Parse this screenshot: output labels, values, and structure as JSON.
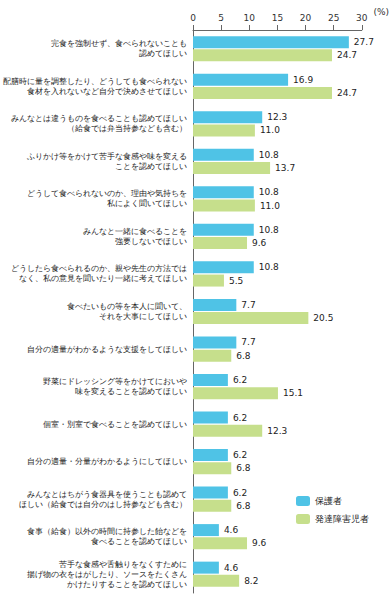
{
  "chart_data": {
    "type": "bar",
    "orientation": "horizontal",
    "xlabel": "(%)",
    "categories": [
      "完食を強制せず、食べられないことも\n認めてほしい",
      "配膳時に量を調整したり、どうしても食べられない\n食材を入れないなど自分で決めさせてほしい",
      "みんなとは違うものを食べることも認めてほしい\n（給食では弁当持参なども含む）",
      "ふりかけ等をかけて苦手な食感や味を変える\nことを認めてほしい",
      "どうして食べられないのか、理由や気持ちを\n私によく聞いてほしい",
      "みんなと一緒に食べることを\n強要しないでほしい",
      "どうしたら食べられるのか、親や先生の方法では\nなく、私の意見を聞いたり一緒に考えてほしい",
      "食べたいもの等を本人に聞いて、\nそれを大事にしてほしい",
      "自分の適量がわかるような支援をしてほしい",
      "野菜にドレッシング等をかけてにおいや\n味を変えることを認めてほしい",
      "個室・別室で食べることを認めてほしい",
      "自分の適量・分量がわかるようにしてほしい",
      "みんなとはちがう食器具を使うことも認めて\nほしい（給食では自分のはし持参なども含む）",
      "食事（給食）以外の時間に持参した飴などを\n食べることを認めてほしい",
      "苦手な食感や舌触りをなくすために\n揚げ物の衣をはがしたり、ソースをたくさん\nかけたりすることを認めてほしい"
    ],
    "series": [
      {
        "name": "保護者",
        "color": "#4fc3e6",
        "values": [
          27.7,
          16.9,
          12.3,
          10.8,
          10.8,
          10.8,
          10.8,
          7.7,
          7.7,
          6.2,
          6.2,
          6.2,
          6.2,
          4.6,
          4.6
        ],
        "value_labels": [
          "27.7",
          "16.9",
          "12.3",
          "10.8",
          "10.8",
          "10.8",
          "10.8",
          "7.7",
          "7.7",
          "6.2",
          "6.2",
          "6.2",
          "6.2",
          "4.6",
          "4.6"
        ]
      },
      {
        "name": "発達障害児者",
        "color": "#c6df8c",
        "values": [
          24.7,
          24.7,
          11.0,
          13.7,
          11.0,
          9.6,
          5.5,
          20.5,
          6.8,
          15.1,
          12.3,
          6.8,
          6.8,
          9.6,
          8.2
        ],
        "value_labels": [
          "24.7",
          "24.7",
          "11.0",
          "13.7",
          "11.0",
          "9.6",
          "5.5",
          "20.5",
          "6.8",
          "15.1",
          "12.3",
          "6.8",
          "6.8",
          "9.6",
          "8.2"
        ]
      }
    ],
    "xlim": [
      0,
      30
    ],
    "xticks": [
      0,
      5,
      10,
      15,
      20,
      25,
      30
    ],
    "grid": false,
    "legend": "lower right",
    "data_labels": true
  }
}
